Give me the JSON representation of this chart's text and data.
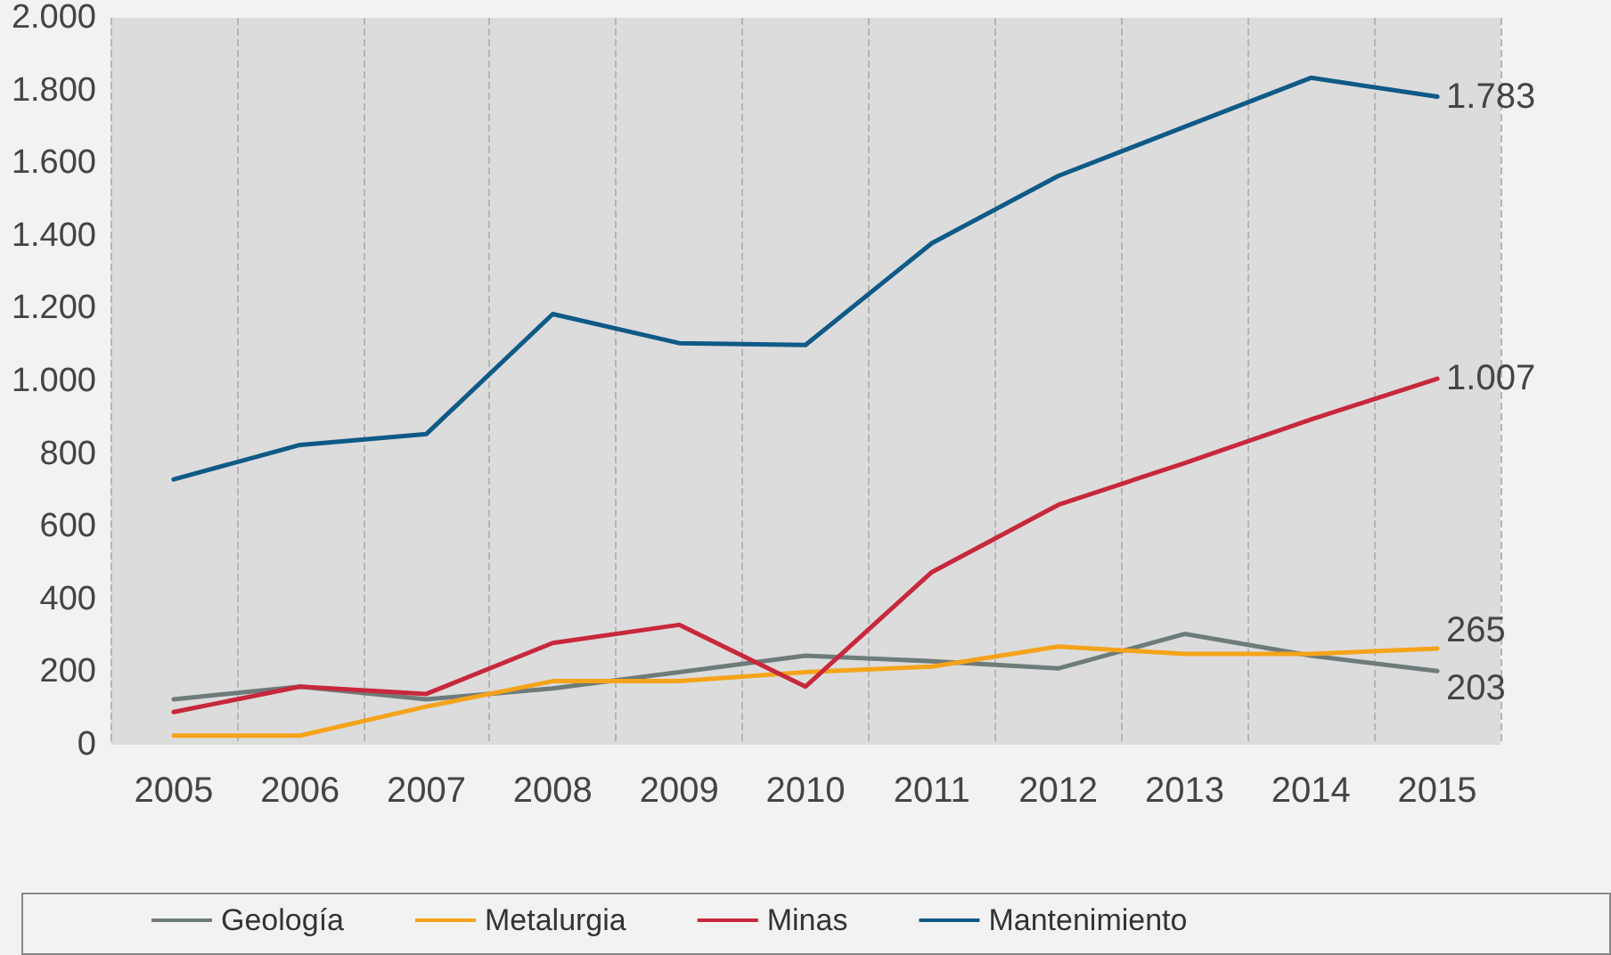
{
  "chart_data": {
    "type": "line",
    "categories": [
      "2005",
      "2006",
      "2007",
      "2008",
      "2009",
      "2010",
      "2011",
      "2012",
      "2013",
      "2014",
      "2015"
    ],
    "series": [
      {
        "name": "Geología",
        "color": "#6e7b7b",
        "values": [
          125,
          160,
          125,
          155,
          200,
          245,
          230,
          210,
          305,
          245,
          203
        ],
        "value_labels": [
          null,
          null,
          null,
          null,
          null,
          null,
          null,
          null,
          null,
          null,
          "203"
        ]
      },
      {
        "name": "Metalurgia",
        "color": "#f5a31a",
        "values": [
          25,
          25,
          105,
          175,
          175,
          200,
          215,
          270,
          250,
          250,
          265
        ],
        "value_labels": [
          null,
          null,
          null,
          null,
          null,
          null,
          null,
          null,
          null,
          null,
          "265"
        ]
      },
      {
        "name": "Minas",
        "color": "#c8283c",
        "values": [
          90,
          160,
          140,
          280,
          330,
          160,
          475,
          660,
          775,
          895,
          1007
        ],
        "value_labels": [
          null,
          null,
          null,
          null,
          null,
          null,
          null,
          null,
          null,
          null,
          "1.007"
        ]
      },
      {
        "name": "Mantenimiento",
        "color": "#0f5a87",
        "values": [
          730,
          825,
          855,
          1185,
          1105,
          1100,
          1380,
          1565,
          1700,
          1835,
          1783
        ],
        "value_labels": [
          null,
          null,
          null,
          null,
          null,
          null,
          null,
          null,
          null,
          null,
          "1.783"
        ]
      }
    ],
    "ylim": [
      0,
      2000
    ],
    "yticks": [
      0,
      200,
      400,
      600,
      800,
      {
        "value": 1000,
        "label": "1.000"
      },
      {
        "value": 1200,
        "label": "1.200"
      },
      {
        "value": 1400,
        "label": "1.400"
      },
      {
        "value": 1600,
        "label": "1.600"
      },
      {
        "value": 1800,
        "label": "1.800"
      },
      {
        "value": 2000,
        "label": "2.000"
      }
    ],
    "grid": "x",
    "legend": "bottom",
    "line_style": "solid"
  }
}
